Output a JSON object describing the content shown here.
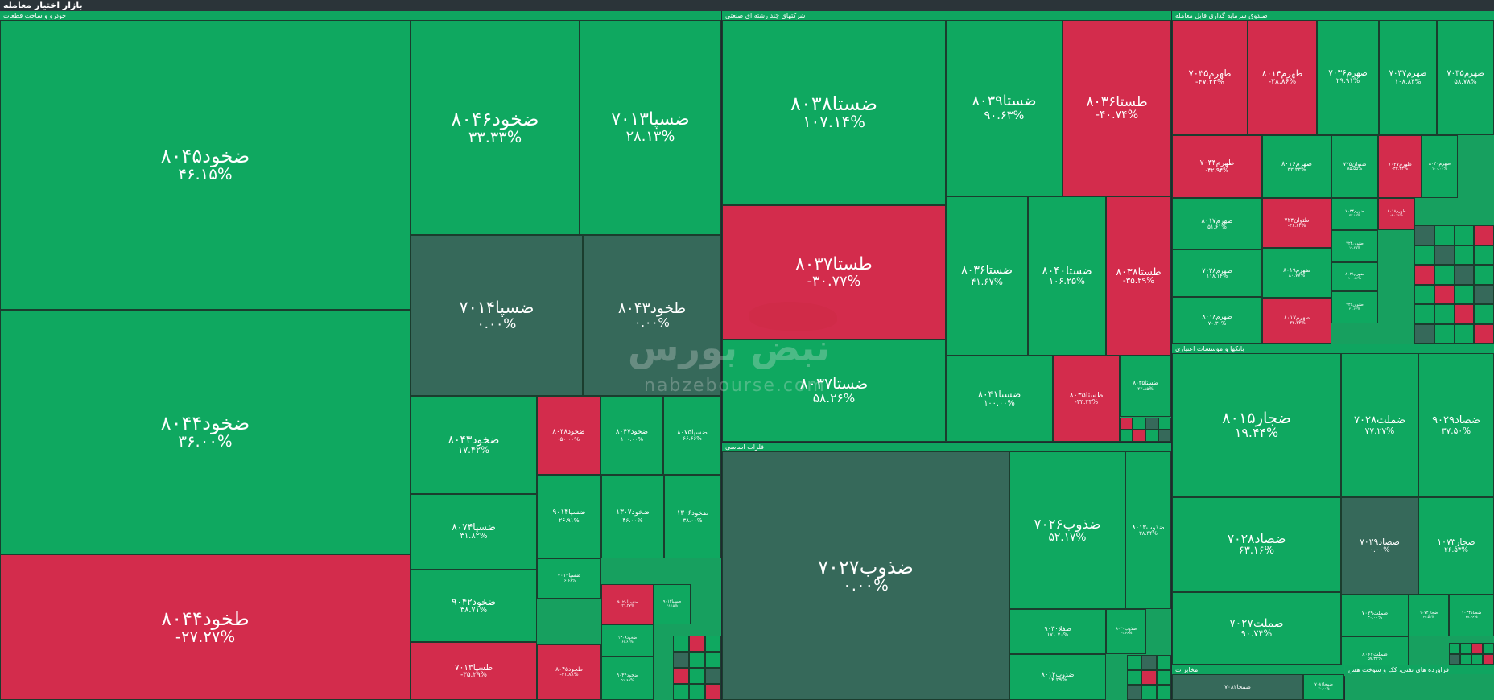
{
  "page": {
    "title": "بازار اختیار معامله"
  },
  "watermark": {
    "name": "نبض بورس",
    "url": "nabzebourse.com"
  },
  "colors": {
    "positive": "#0fa860",
    "negative": "#d32c4c",
    "neutral": "#36695a"
  },
  "chart_data": {
    "type": "treemap",
    "sectors": [
      {
        "name": "خودرو و ساخت قطعات",
        "tiles": [
          {
            "symbol": "ضخود۸۰۴۵",
            "change": "۴۶.۱۵%",
            "value": 46.15
          },
          {
            "symbol": "ضخود۸۰۴۴",
            "change": "۳۶.۰۰%",
            "value": 36.0
          },
          {
            "symbol": "طخود۸۰۴۴",
            "change": "-۲۷.۲۷%",
            "value": -27.27
          },
          {
            "symbol": "ضخود۸۰۴۶",
            "change": "۳۳.۳۳%",
            "value": 33.33
          },
          {
            "symbol": "ضسپا۷۰۱۳",
            "change": "۲۸.۱۳%",
            "value": 28.13
          },
          {
            "symbol": "ضسپا۷۰۱۴",
            "change": "۰.۰۰%",
            "value": 0
          },
          {
            "symbol": "طخود۸۰۴۳",
            "change": "۰.۰۰%",
            "value": 0
          },
          {
            "symbol": "ضخود۸۰۴۳",
            "change": "۱۷.۴۲%",
            "value": 17.42
          },
          {
            "symbol": "ضسپا۸۰۷۴",
            "change": "۳۱.۸۲%",
            "value": 31.82
          },
          {
            "symbol": "ضخود۹۰۴۲",
            "change": "۳۸.۷۱%",
            "value": 38.71
          },
          {
            "symbol": "طسپا۷۰۱۳",
            "change": "-۳۵.۲۹%",
            "value": -35.29
          },
          {
            "symbol": "ضخود۸۰۴۸",
            "change": "-۵۰.۰۰%",
            "value": -50.0
          },
          {
            "symbol": "ضخود۸۰۴۷",
            "change": "۱۰۰.۰۰%",
            "value": 100.0
          },
          {
            "symbol": "ضسپا۸۰۷۵",
            "change": "۶۶.۶۶%",
            "value": 66.66
          },
          {
            "symbol": "ضسپا۹۰۱۴",
            "change": "۲۶.۹۱%",
            "value": 26.91
          },
          {
            "symbol": "ضخود۱۳۰۷",
            "change": "۴۶.۰۰%",
            "value": 46.0
          },
          {
            "symbol": "ضخود۱۳۰۶",
            "change": "۳۸.۰۰%",
            "value": 38.0
          },
          {
            "symbol": "ضسپا۷۰۱۲",
            "change": "۱۶.۶۶%",
            "value": 16.66
          },
          {
            "symbol": "ضسپا۹۰۲۰",
            "change": "-۲۱.۲۷%",
            "value": -21.27
          },
          {
            "symbol": "ضسپا۹۰۱۳",
            "change": "۴۶.۱۵%",
            "value": 46.15
          },
          {
            "symbol": "ضخود۱۳۰۸",
            "change": "۶۶.۶۶%",
            "value": 66.66
          },
          {
            "symbol": "طخود۸۰۴۵",
            "change": "-۳۱.۸۸%",
            "value": -31.88
          },
          {
            "symbol": "ضخود۹۰۴۴",
            "change": "۵۱.۶۶%",
            "value": 51.66
          }
        ]
      },
      {
        "name": "شرکتهای چند رشته ای صنعتی",
        "tiles": [
          {
            "symbol": "ضستا۸۰۳۸",
            "change": "۱۰۷.۱۴%",
            "value": 107.14
          },
          {
            "symbol": "طستا۸۰۳۷",
            "change": "-۳۰.۷۷%",
            "value": -30.77
          },
          {
            "symbol": "ضستا۸۰۳۷",
            "change": "۵۸.۲۶%",
            "value": 58.26
          },
          {
            "symbol": "ضستا۸۰۳۹",
            "change": "۹۰.۶۳%",
            "value": 90.63
          },
          {
            "symbol": "طستا۸۰۳۶",
            "change": "-۴۰.۷۴%",
            "value": -40.74
          },
          {
            "symbol": "ضستا۸۰۳۶",
            "change": "۴۱.۶۷%",
            "value": 41.67
          },
          {
            "symbol": "ضستا۸۰۴۰",
            "change": "۱۰۶.۲۵%",
            "value": 106.25
          },
          {
            "symbol": "طستا۸۰۳۸",
            "change": "-۳۵.۲۹%",
            "value": -35.29
          },
          {
            "symbol": "ضستا۸۰۴۱",
            "change": "۱۰۰.۰۰%",
            "value": 100.0
          },
          {
            "symbol": "طستا۸۰۳۵",
            "change": "-۳۳.۳۳%",
            "value": -33.33
          },
          {
            "symbol": "ضستا۸۰۳۵",
            "change": "۲۲.۸۵%",
            "value": 22.85
          }
        ]
      },
      {
        "name": "فلزات اساسی",
        "tiles": [
          {
            "symbol": "ضذوب۷۰۲۷",
            "change": "۰.۰۰%",
            "value": 0
          },
          {
            "symbol": "ضذوب۷۰۲۶",
            "change": "۵۲.۱۷%",
            "value": 52.17
          },
          {
            "symbol": "ضذوب۸۰۱۳",
            "change": "۳۸.۴۴%",
            "value": 38.44
          },
          {
            "symbol": "ضفلا۹۰۳۰",
            "change": "۱۷۱.۷۰%",
            "value": 171.7
          },
          {
            "symbol": "ضذوب۹۰۳۰",
            "change": "۴۱.۶۶%",
            "value": 41.66
          },
          {
            "symbol": "ضذوب۸۰۱۴",
            "change": "۱۴.۲۹%",
            "value": 14.29
          }
        ]
      },
      {
        "name": "صندوق سرمایه گذاری قابل معامله",
        "tiles": [
          {
            "symbol": "طهرم۷۰۳۵",
            "change": "-۴۷.۲۳%",
            "value": -47.23
          },
          {
            "symbol": "طهرم۸۰۱۴",
            "change": "-۲۸.۸۶%",
            "value": -28.86
          },
          {
            "symbol": "ضهرم۷۰۳۶",
            "change": "۲۹.۹۱%",
            "value": 29.91
          },
          {
            "symbol": "ضهرم۷۰۳۷",
            "change": "۱۰۸.۸۴%",
            "value": 108.84
          },
          {
            "symbol": "ضهرم۷۰۳۵",
            "change": "۵۸.۷۸%",
            "value": 58.78
          },
          {
            "symbol": "طهرم۷۰۳۴",
            "change": "-۴۲.۹۴%",
            "value": -42.94
          },
          {
            "symbol": "ضهرم۸۰۱۶",
            "change": "۳۳.۳۳%",
            "value": 33.33
          },
          {
            "symbol": "ضتوان۷۲۵",
            "change": "۸۵.۵۵%",
            "value": 85.55
          },
          {
            "symbol": "طهرم۷۰۳۷",
            "change": "-۳۳.۳۳%",
            "value": -33.33
          },
          {
            "symbol": "ضهرم۸۰۲۰",
            "change": "۱۰۰.۰۰%",
            "value": 100.0
          },
          {
            "symbol": "ضهرم۸۰۱۷",
            "change": "۵۱.۶۱%",
            "value": 51.61
          },
          {
            "symbol": "طتوان۷۲۴",
            "change": "-۴۶.۶۳%",
            "value": -46.63
          },
          {
            "symbol": "ضهرم۷۰۳۴",
            "change": "۳۷.۱۷%",
            "value": 37.17
          },
          {
            "symbol": "طهرم۸۰۱۸",
            "change": "-۳۰.۲۶%",
            "value": -30.26
          },
          {
            "symbol": "ضهرم۷۰۳۸",
            "change": "۱۱۸.۱۴%",
            "value": 118.14
          },
          {
            "symbol": "ضهرم۸۰۱۹",
            "change": "۸۰.۷۷%",
            "value": 80.77
          },
          {
            "symbol": "ضتوان۷۲۴",
            "change": "۱۹.۲۵%",
            "value": 19.25
          },
          {
            "symbol": "ضهرم۸۰۱۸",
            "change": "۷۰.۳۰%",
            "value": 70.3
          },
          {
            "symbol": "طهرم۸۰۱۷",
            "change": "-۳۴.۳۳%",
            "value": -34.33
          },
          {
            "symbol": "ضهرم۸۰۲۱",
            "change": "۱۰۰.۲۶%",
            "value": 100.26
          },
          {
            "symbol": "ضتوان۷۲۶",
            "change": "۴۱.۶۶%",
            "value": 41.66
          }
        ]
      },
      {
        "name": "بانکها و موسسات اعتباری",
        "tiles": [
          {
            "symbol": "ضجار۸۰۱۵",
            "change": "۱۹.۴۴%",
            "value": 19.44
          },
          {
            "symbol": "ضملت۷۰۲۸",
            "change": "۷۷.۲۷%",
            "value": 77.27
          },
          {
            "symbol": "ضصاد۹۰۲۹",
            "change": "۳۷.۵۰%",
            "value": 37.5
          },
          {
            "symbol": "ضصاد۷۰۲۸",
            "change": "۶۳.۱۶%",
            "value": 63.16
          },
          {
            "symbol": "ضصاد۷۰۲۹",
            "change": "۰.۰۰%",
            "value": 0
          },
          {
            "symbol": "ضجار۱۰۷۳",
            "change": "۲۶.۵۳%",
            "value": 26.53
          },
          {
            "symbol": "ضملت۷۰۲۷",
            "change": "۹۰.۷۴%",
            "value": 90.74
          },
          {
            "symbol": "ضملت۷۰۲۹",
            "change": "۳۰.۰۰%",
            "value": 30.0
          },
          {
            "symbol": "ضجار۱۰۷۴",
            "change": "۳۳.۵۱%",
            "value": 33.51
          },
          {
            "symbol": "ضصاد۱۰۳۴",
            "change": "۲۷.۶۶%",
            "value": 27.66
          },
          {
            "symbol": "ضملت۸۰۶۲",
            "change": "۵۷.۳۲%",
            "value": 57.32
          }
        ]
      },
      {
        "name": "مخابرات",
        "tiles": [
          {
            "symbol": "ضمخا۷۰۸۲",
            "change": "",
            "value": null
          },
          {
            "symbol": "ضمخا۷۰۸۱",
            "change": "۲۰.۰۰%",
            "value": 20.0
          }
        ]
      },
      {
        "name": "فراورده های نفتی، کک و سوخت هس",
        "tiles": []
      }
    ]
  }
}
